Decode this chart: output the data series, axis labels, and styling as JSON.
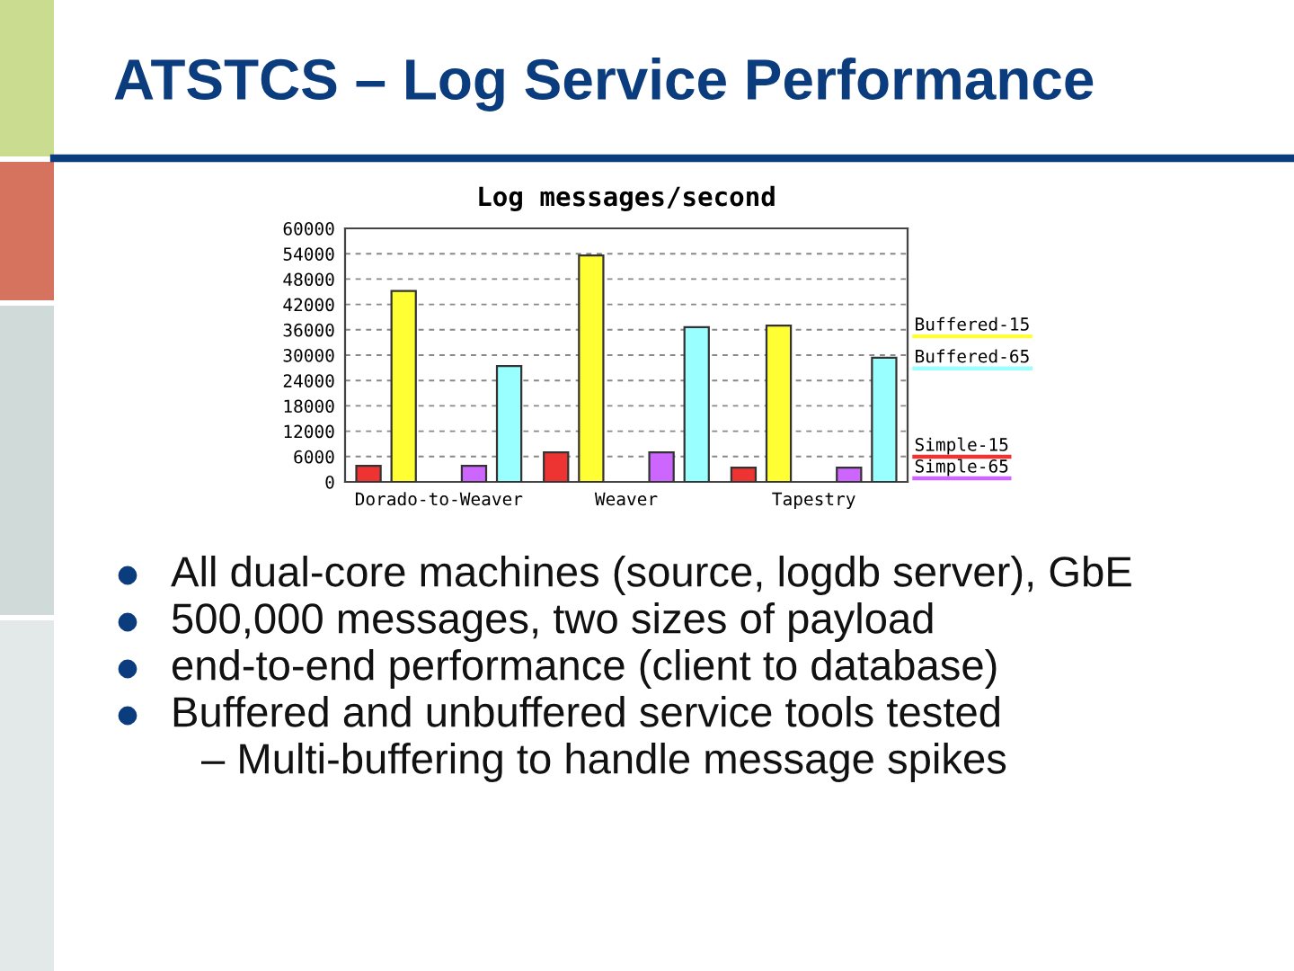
{
  "chart_data": {
    "type": "bar",
    "title": "ATSTCS – Log Service Performance",
    "subtitle": "Log messages/second",
    "categories": [
      "Dorado-to-Weaver",
      "Weaver",
      "Tapestry"
    ],
    "series": [
      {
        "name": "Simple-15",
        "color": "#ee3333",
        "values": [
          3800,
          7000,
          3400
        ]
      },
      {
        "name": "Buffered-15",
        "color": "#ffff33",
        "values": [
          45200,
          53600,
          37000
        ]
      },
      {
        "name": "Simple-65",
        "color": "#cc66ff",
        "values": [
          3800,
          7000,
          3400
        ]
      },
      {
        "name": "Buffered-65",
        "color": "#99ffff",
        "values": [
          27400,
          36600,
          29400
        ]
      }
    ],
    "ylim": [
      0,
      60000
    ],
    "yticks": [
      0,
      6000,
      12000,
      18000,
      24000,
      30000,
      36000,
      42000,
      48000,
      54000,
      60000
    ],
    "grid": "y",
    "legend": "right",
    "annotations": [
      "All dual-core machines (source, logdb server), GbE",
      "500,000 messages, two sizes of payload",
      "end-to-end performance (client to database)",
      "Buffered and unbuffered service tools tested",
      "– Multi-buffering to handle message spikes"
    ]
  }
}
